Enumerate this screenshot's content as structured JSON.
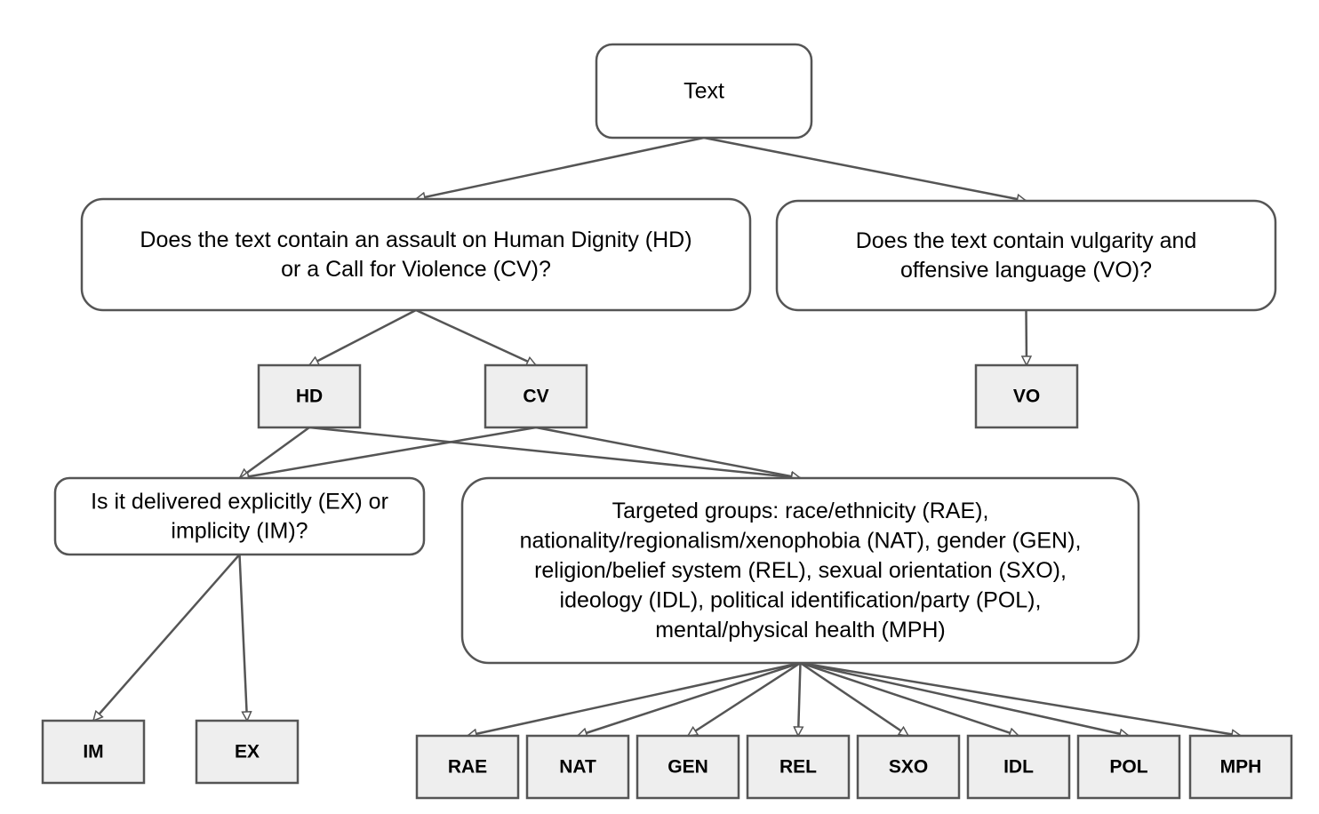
{
  "nodes": {
    "root": {
      "lines": [
        "Text"
      ]
    },
    "q_hdcv": {
      "lines": [
        "Does the text contain an assault on Human Dignity (HD)",
        "or a Call for Violence (CV)?"
      ]
    },
    "q_vo": {
      "lines": [
        "Does the text contain vulgarity and",
        "offensive language (VO)?"
      ]
    },
    "hd": {
      "lines": [
        "HD"
      ]
    },
    "cv": {
      "lines": [
        "CV"
      ]
    },
    "vo": {
      "lines": [
        "VO"
      ]
    },
    "q_exim": {
      "lines": [
        "Is it delivered explicitly (EX) or",
        "implicity (IM)?"
      ]
    },
    "targets": {
      "lines": [
        "Targeted groups: race/ethnicity (RAE),",
        "nationality/regionalism/xenophobia (NAT), gender (GEN),",
        "religion/belief system (REL), sexual orientation (SXO),",
        "ideology (IDL), political identification/party (POL),",
        "mental/physical health (MPH)"
      ]
    },
    "im": {
      "lines": [
        "IM"
      ]
    },
    "ex": {
      "lines": [
        "EX"
      ]
    },
    "rae": {
      "lines": [
        "RAE"
      ]
    },
    "nat": {
      "lines": [
        "NAT"
      ]
    },
    "gen": {
      "lines": [
        "GEN"
      ]
    },
    "rel": {
      "lines": [
        "REL"
      ]
    },
    "sxo": {
      "lines": [
        "SXO"
      ]
    },
    "idl": {
      "lines": [
        "IDL"
      ]
    },
    "pol": {
      "lines": [
        "POL"
      ]
    },
    "mph": {
      "lines": [
        "MPH"
      ]
    }
  },
  "edges": [
    [
      "root",
      "q_hdcv"
    ],
    [
      "root",
      "q_vo"
    ],
    [
      "q_hdcv",
      "hd"
    ],
    [
      "q_hdcv",
      "cv"
    ],
    [
      "q_vo",
      "vo"
    ],
    [
      "hd",
      "q_exim"
    ],
    [
      "cv",
      "q_exim"
    ],
    [
      "hd",
      "targets"
    ],
    [
      "cv",
      "targets"
    ],
    [
      "q_exim",
      "im"
    ],
    [
      "q_exim",
      "ex"
    ],
    [
      "targets",
      "rae"
    ],
    [
      "targets",
      "nat"
    ],
    [
      "targets",
      "gen"
    ],
    [
      "targets",
      "rel"
    ],
    [
      "targets",
      "sxo"
    ],
    [
      "targets",
      "idl"
    ],
    [
      "targets",
      "pol"
    ],
    [
      "targets",
      "mph"
    ]
  ],
  "colors": {
    "stroke": "#555555",
    "leaf_fill": "#eeeeee",
    "question_fill": "#ffffff"
  }
}
